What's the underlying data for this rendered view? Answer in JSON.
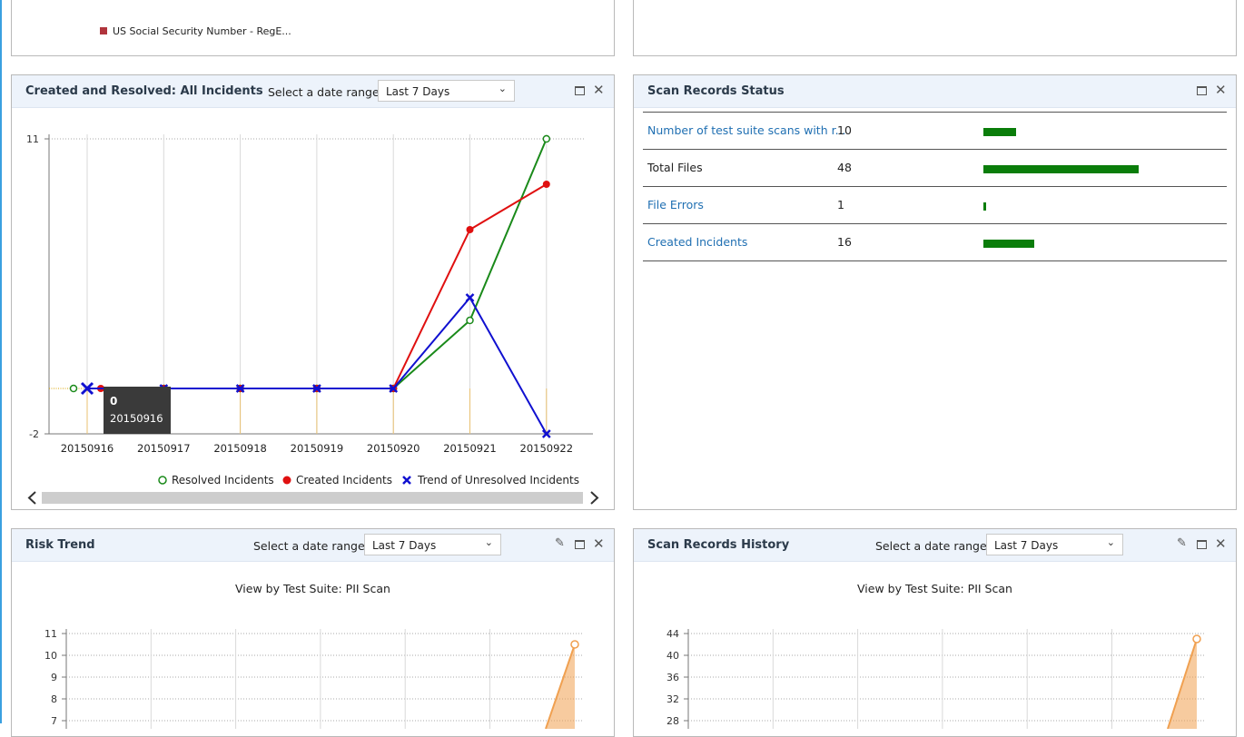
{
  "top_left_panel": {
    "legend_item": "US Social Security Number - RegE...",
    "legend_color": "#b0343c"
  },
  "incidents_panel": {
    "title": "Created and Resolved: All Incidents",
    "range_label": "Select a date range:",
    "range_value": "Last 7 Days",
    "tooltip": {
      "value": "0",
      "date": "20150916"
    },
    "legend": [
      "Resolved Incidents",
      "Created Incidents",
      "Trend of Unresolved Incidents"
    ]
  },
  "scan_status_panel": {
    "title": "Scan Records Status",
    "rows": [
      {
        "label": "Number of test suite scans with r...",
        "value": "10",
        "bar_fraction": 0.21,
        "link": true
      },
      {
        "label": "Total Files",
        "value": "48",
        "bar_fraction": 1.0,
        "link": false
      },
      {
        "label": "File Errors",
        "value": "1",
        "bar_fraction": 0.02,
        "link": true
      },
      {
        "label": "Created Incidents",
        "value": "16",
        "bar_fraction": 0.33,
        "link": true
      }
    ],
    "bar_color": "#0a7d0a"
  },
  "risk_panel": {
    "title": "Risk Trend",
    "range_label": "Select a date range:",
    "range_value": "Last 7 Days",
    "subtitle": "View by Test Suite: PII Scan"
  },
  "history_panel": {
    "title": "Scan Records History",
    "range_label": "Select a date range:",
    "range_value": "Last 7 Days",
    "subtitle": "View by Test Suite: PII Scan"
  },
  "chart_data": [
    {
      "type": "line",
      "categories": [
        "20150916",
        "20150917",
        "20150918",
        "20150919",
        "20150920",
        "20150921",
        "20150922"
      ],
      "ylim": [
        -2,
        11
      ],
      "y_ticks": [
        "11",
        "-2"
      ],
      "series": [
        {
          "name": "Resolved Incidents",
          "color": "#1a8a1a",
          "values": [
            0,
            0,
            0,
            0,
            0,
            3,
            11
          ]
        },
        {
          "name": "Created Incidents",
          "color": "#e01010",
          "values": [
            0,
            0,
            0,
            0,
            0,
            7,
            9
          ]
        },
        {
          "name": "Trend of Unresolved Incidents",
          "color": "#1010d0",
          "values": [
            0,
            0,
            0,
            0,
            0,
            4,
            -2
          ]
        }
      ],
      "grid": true,
      "legend": "bottom"
    },
    {
      "type": "area",
      "y_ticks": [
        "11",
        "10",
        "9",
        "8",
        "7"
      ],
      "ylim": [
        6.7,
        11
      ],
      "series": [
        {
          "color": "#f0a050",
          "last_value": 10.5
        }
      ],
      "grid": true
    },
    {
      "type": "area",
      "y_ticks": [
        "44",
        "40",
        "36",
        "32",
        "28"
      ],
      "ylim": [
        27.5,
        44
      ],
      "series": [
        {
          "color": "#f0a050",
          "last_value": 43
        }
      ],
      "grid": true
    }
  ]
}
